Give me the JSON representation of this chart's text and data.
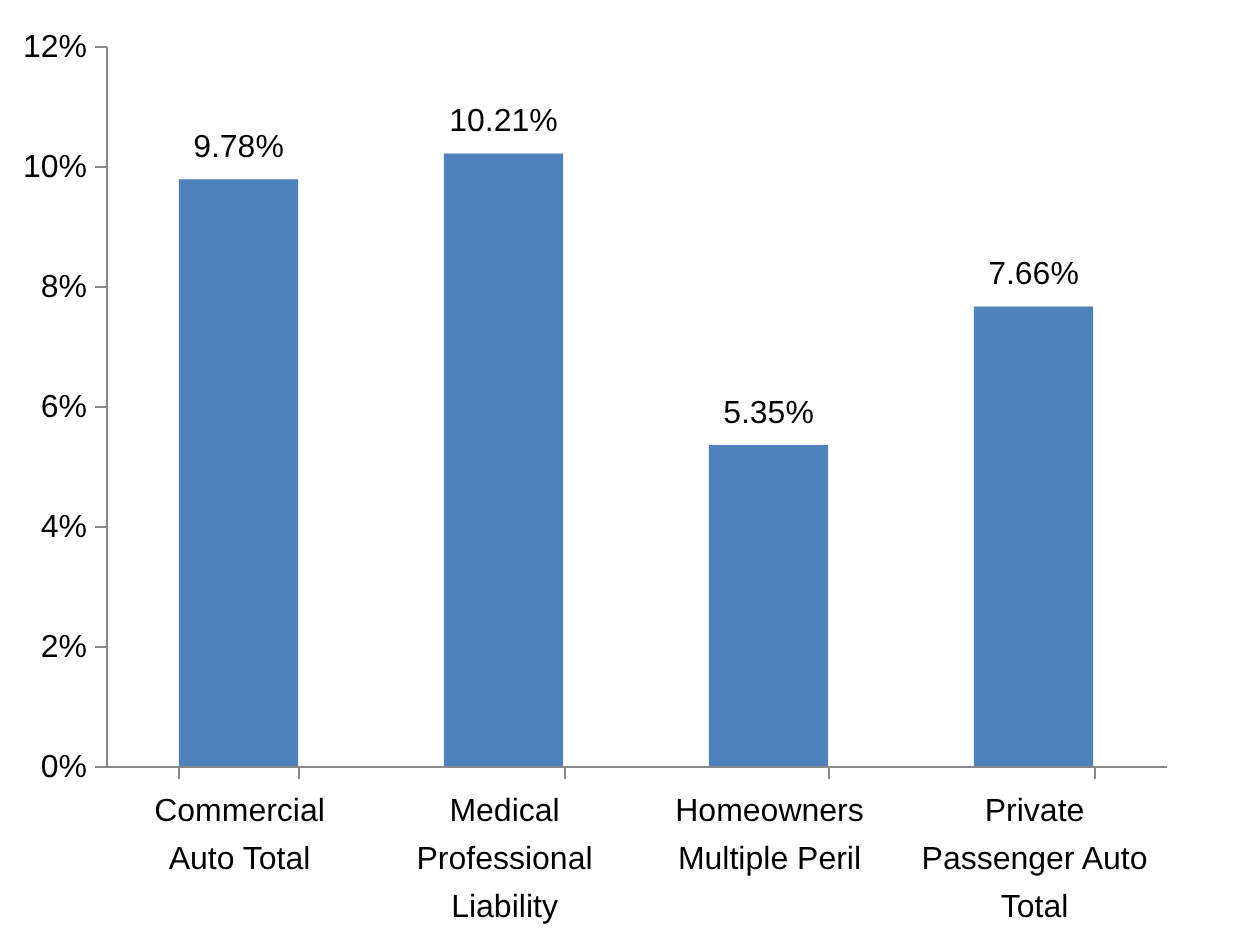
{
  "chart_data": {
    "type": "bar",
    "categories": [
      "Commercial Auto Total",
      "Medical Professional Liability",
      "Homeowners Multiple Peril",
      "Private Passenger Auto Total"
    ],
    "values": [
      9.78,
      10.21,
      5.35,
      7.66
    ],
    "value_labels": [
      "9.78%",
      "10.21%",
      "5.35%",
      "7.66%"
    ],
    "color": "#4f81bd",
    "ylim": [
      0,
      12
    ],
    "yticks": [
      {
        "value": 0,
        "label": "0%"
      },
      {
        "value": 2,
        "label": "2%"
      },
      {
        "value": 4,
        "label": "4%"
      },
      {
        "value": 6,
        "label": "6%"
      },
      {
        "value": 8,
        "label": "8%"
      },
      {
        "value": 10,
        "label": "10%"
      },
      {
        "value": 12,
        "label": "12%"
      }
    ],
    "grid": false
  }
}
